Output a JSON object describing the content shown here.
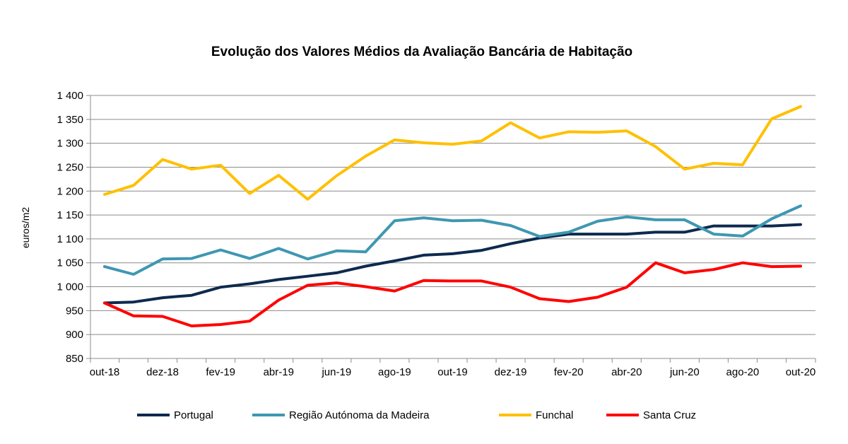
{
  "chart_data": {
    "type": "line",
    "title": "Evolução dos Valores Médios da Avaliação Bancária de Habitação",
    "ylabel": "euros/m2",
    "xlabel": "",
    "ylim": [
      850,
      1400
    ],
    "y_ticks": [
      850,
      900,
      950,
      1000,
      1050,
      1100,
      1150,
      1200,
      1250,
      1300,
      1350,
      1400
    ],
    "y_tick_labels": [
      "850",
      "900",
      "950",
      "1 000",
      "1 050",
      "1 100",
      "1 150",
      "1 200",
      "1 250",
      "1 300",
      "1 350",
      "1 400"
    ],
    "grid": "horizontal",
    "legend_position": "bottom",
    "categories": [
      "out-18",
      "nov-18",
      "dez-18",
      "jan-19",
      "fev-19",
      "mar-19",
      "abr-19",
      "mai-19",
      "jun-19",
      "jul-19",
      "ago-19",
      "set-19",
      "out-19",
      "nov-19",
      "dez-19",
      "jan-20",
      "fev-20",
      "mar-20",
      "abr-20",
      "mai-20",
      "jun-20",
      "jul-20",
      "ago-20",
      "set-20",
      "out-20"
    ],
    "x_tick_labels": [
      "out-18",
      "",
      "dez-18",
      "",
      "fev-19",
      "",
      "abr-19",
      "",
      "jun-19",
      "",
      "ago-19",
      "",
      "out-19",
      "",
      "dez-19",
      "",
      "fev-20",
      "",
      "abr-20",
      "",
      "jun-20",
      "",
      "ago-20",
      "",
      "out-20"
    ],
    "series": [
      {
        "name": "Portugal",
        "color": "#0d2a4e",
        "values": [
          966,
          968,
          977,
          982,
          999,
          1006,
          1015,
          1022,
          1029,
          1043,
          1054,
          1066,
          1069,
          1076,
          1090,
          1102,
          1110,
          1110,
          1110,
          1114,
          1114,
          1127,
          1127,
          1127,
          1130
        ]
      },
      {
        "name": "Região Autónoma da Madeira",
        "color": "#3f97b2",
        "values": [
          1042,
          1026,
          1058,
          1059,
          1077,
          1059,
          1080,
          1058,
          1075,
          1073,
          1138,
          1144,
          1138,
          1139,
          1128,
          1105,
          1114,
          1137,
          1146,
          1140,
          1140,
          1110,
          1106,
          1142,
          1169
        ]
      },
      {
        "name": "Funchal",
        "color": "#ffc000",
        "values": [
          1193,
          1212,
          1266,
          1246,
          1254,
          1195,
          1233,
          1183,
          1232,
          1273,
          1307,
          1301,
          1298,
          1305,
          1343,
          1311,
          1324,
          1323,
          1326,
          1293,
          1246,
          1258,
          1255,
          1351,
          1377
        ]
      },
      {
        "name": "Santa Cruz",
        "color": "#ff0000",
        "values": [
          966,
          939,
          938,
          918,
          921,
          928,
          972,
          1003,
          1008,
          1000,
          991,
          1013,
          1012,
          1012,
          999,
          975,
          969,
          978,
          999,
          1050,
          1029,
          1036,
          1050,
          1042,
          1043
        ]
      }
    ]
  }
}
